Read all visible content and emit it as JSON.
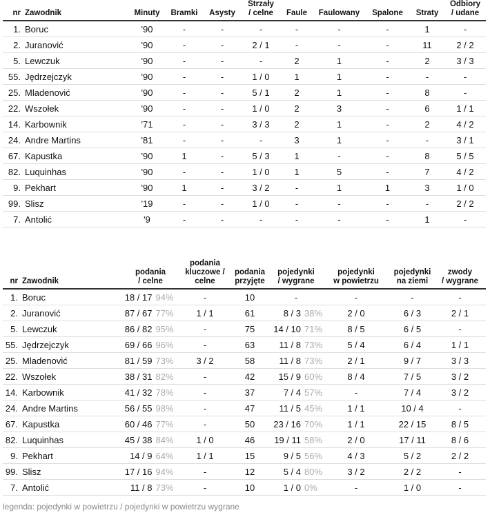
{
  "table1": {
    "headers": [
      [
        "nr"
      ],
      [
        "Zawodnik"
      ],
      [
        "Minuty"
      ],
      [
        "Bramki"
      ],
      [
        "Asysty"
      ],
      [
        "Strzały",
        "/ celne"
      ],
      [
        "Faule"
      ],
      [
        "Faulowany"
      ],
      [
        "Spalone"
      ],
      [
        "Straty"
      ],
      [
        "Odbiory",
        "/ udane"
      ]
    ],
    "rows": [
      [
        "1.",
        "Boruc",
        "'90",
        "-",
        "-",
        "-",
        "-",
        "-",
        "-",
        "1",
        "-"
      ],
      [
        "2.",
        "Juranović",
        "'90",
        "-",
        "-",
        "2 / 1",
        "-",
        "-",
        "-",
        "11",
        "2 / 2"
      ],
      [
        "5.",
        "Lewczuk",
        "'90",
        "-",
        "-",
        "-",
        "2",
        "1",
        "-",
        "2",
        "3 / 3"
      ],
      [
        "55.",
        "Jędrzejczyk",
        "'90",
        "-",
        "-",
        "1 / 0",
        "1",
        "1",
        "-",
        "-",
        "-"
      ],
      [
        "25.",
        "Mladenović",
        "'90",
        "-",
        "-",
        "5 / 1",
        "2",
        "1",
        "-",
        "8",
        "-"
      ],
      [
        "22.",
        "Wszołek",
        "'90",
        "-",
        "-",
        "1 / 0",
        "2",
        "3",
        "-",
        "6",
        "1 / 1"
      ],
      [
        "14.",
        "Karbownik",
        "'71",
        "-",
        "-",
        "3 / 3",
        "2",
        "1",
        "-",
        "2",
        "4 / 2"
      ],
      [
        "24.",
        "Andre Martins",
        "'81",
        "-",
        "-",
        "-",
        "3",
        "1",
        "-",
        "-",
        "3 / 1"
      ],
      [
        "67.",
        "Kapustka",
        "'90",
        "1",
        "-",
        "5 / 3",
        "1",
        "-",
        "-",
        "8",
        "5 / 5"
      ],
      [
        "82.",
        "Luquinhas",
        "'90",
        "-",
        "-",
        "1 / 0",
        "1",
        "5",
        "-",
        "7",
        "4 / 2"
      ],
      [
        "9.",
        "Pekhart",
        "'90",
        "1",
        "-",
        "3 / 2",
        "-",
        "1",
        "1",
        "3",
        "1 / 0"
      ],
      [
        "99.",
        "Slisz",
        "'19",
        "-",
        "-",
        "1 / 0",
        "-",
        "-",
        "-",
        "-",
        "2 / 2"
      ],
      [
        "7.",
        "Antolić",
        "'9",
        "-",
        "-",
        "-",
        "-",
        "-",
        "-",
        "1",
        "-"
      ]
    ]
  },
  "table2": {
    "headers": [
      [
        "nr"
      ],
      [
        "Zawodnik"
      ],
      [
        "podania",
        "/ celne"
      ],
      [
        "podania",
        "kluczowe /",
        "celne"
      ],
      [
        "podania",
        "przyjęte"
      ],
      [
        "pojedynki",
        "/ wygrane"
      ],
      [
        "pojedynki",
        "w powietrzu"
      ],
      [
        "pojedynki",
        "na ziemi"
      ],
      [
        "zwody",
        "/ wygrane"
      ]
    ],
    "rows": [
      [
        "1.",
        "Boruc",
        {
          "text": "18 / 17",
          "pct": "94%"
        },
        "-",
        "10",
        "-",
        "-",
        "-",
        "-"
      ],
      [
        "2.",
        "Juranović",
        {
          "text": "87 / 67",
          "pct": "77%"
        },
        "1 / 1",
        "61",
        {
          "text": "8 / 3",
          "pct": "38%"
        },
        "2 / 0",
        "6 / 3",
        "2 / 1"
      ],
      [
        "5.",
        "Lewczuk",
        {
          "text": "86 / 82",
          "pct": "95%"
        },
        "-",
        "75",
        {
          "text": "14 / 10",
          "pct": "71%"
        },
        "8 / 5",
        "6 / 5",
        "-"
      ],
      [
        "55.",
        "Jędrzejczyk",
        {
          "text": "69 / 66",
          "pct": "96%"
        },
        "-",
        "63",
        {
          "text": "11 / 8",
          "pct": "73%"
        },
        "5 / 4",
        "6 / 4",
        "1 / 1"
      ],
      [
        "25.",
        "Mladenović",
        {
          "text": "81 / 59",
          "pct": "73%"
        },
        "3 / 2",
        "58",
        {
          "text": "11 / 8",
          "pct": "73%"
        },
        "2 / 1",
        "9 / 7",
        "3 / 3"
      ],
      [
        "22.",
        "Wszołek",
        {
          "text": "38 / 31",
          "pct": "82%"
        },
        "-",
        "42",
        {
          "text": "15 / 9",
          "pct": "60%"
        },
        "8 / 4",
        "7 / 5",
        "3 / 2"
      ],
      [
        "14.",
        "Karbownik",
        {
          "text": "41 / 32",
          "pct": "78%"
        },
        "-",
        "37",
        {
          "text": "7 / 4",
          "pct": "57%"
        },
        "-",
        "7 / 4",
        "3 / 2"
      ],
      [
        "24.",
        "Andre Martins",
        {
          "text": "56 / 55",
          "pct": "98%"
        },
        "-",
        "47",
        {
          "text": "11 / 5",
          "pct": "45%"
        },
        "1 / 1",
        "10 / 4",
        "-"
      ],
      [
        "67.",
        "Kapustka",
        {
          "text": "60 / 46",
          "pct": "77%"
        },
        "-",
        "50",
        {
          "text": "23 / 16",
          "pct": "70%"
        },
        "1 / 1",
        "22 / 15",
        "8 / 5"
      ],
      [
        "82.",
        "Luquinhas",
        {
          "text": "45 / 38",
          "pct": "84%"
        },
        "1 / 0",
        "46",
        {
          "text": "19 / 11",
          "pct": "58%"
        },
        "2 / 0",
        "17 / 11",
        "8 / 6"
      ],
      [
        "9.",
        "Pekhart",
        {
          "text": "14 / 9",
          "pct": "64%"
        },
        "1 / 1",
        "15",
        {
          "text": "9 / 5",
          "pct": "56%"
        },
        "4 / 3",
        "5 / 2",
        "2 / 2"
      ],
      [
        "99.",
        "Slisz",
        {
          "text": "17 / 16",
          "pct": "94%"
        },
        "-",
        "12",
        {
          "text": "5 / 4",
          "pct": "80%"
        },
        "3 / 2",
        "2 / 2",
        "-"
      ],
      [
        "7.",
        "Antolić",
        {
          "text": "11 / 8",
          "pct": "73%"
        },
        "-",
        "10",
        {
          "text": "1 / 0",
          "pct": "0%"
        },
        "-",
        "1 / 0",
        "-"
      ]
    ]
  },
  "legend": "legenda: pojedynki w powietrzu / pojedynki w powietrzu wygrane"
}
